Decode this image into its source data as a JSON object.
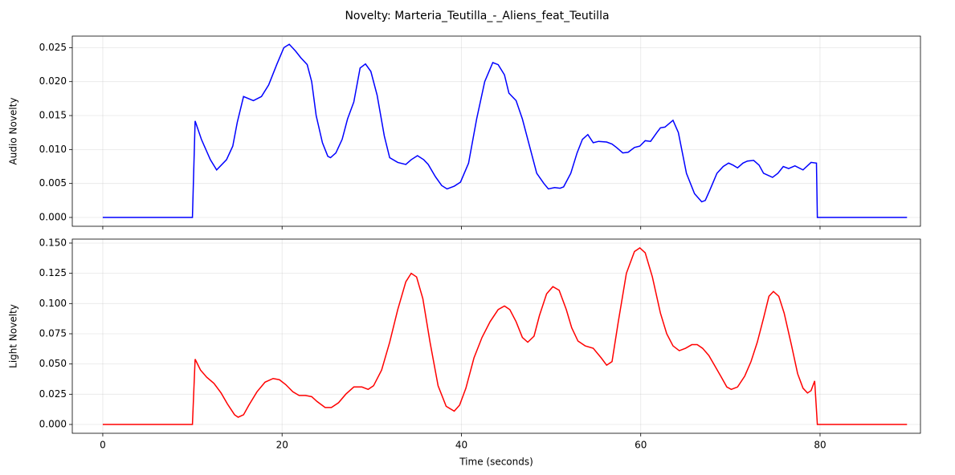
{
  "title": "Novelty: Marteria_Teutilla_-_Aliens_feat_Teutilla",
  "chart_data": [
    {
      "type": "line",
      "ylabel": "Audio Novelty",
      "color": "#0000ff",
      "grid": true,
      "xlim": [
        -3.4,
        91.2
      ],
      "ylim": [
        -0.0013,
        0.0267
      ],
      "yticks": [
        {
          "value": 0,
          "label": "0.000"
        },
        {
          "value": 0.005,
          "label": "0.005"
        },
        {
          "value": 0.01,
          "label": "0.010"
        },
        {
          "value": 0.015,
          "label": "0.015"
        },
        {
          "value": 0.02,
          "label": "0.020"
        },
        {
          "value": 0.025,
          "label": "0.025"
        }
      ],
      "x": [
        0,
        10.0,
        10.3,
        11.0,
        12.0,
        12.7,
        13.8,
        14.5,
        15.0,
        15.7,
        16.8,
        17.7,
        18.5,
        19.4,
        20.2,
        20.8,
        21.5,
        22.1,
        22.8,
        23.3,
        23.8,
        24.5,
        25.1,
        25.4,
        26.0,
        26.7,
        27.3,
        28.0,
        28.7,
        29.3,
        29.9,
        30.6,
        31.4,
        32.0,
        32.9,
        33.8,
        34.4,
        35.1,
        35.8,
        36.3,
        37.1,
        37.8,
        38.4,
        39.2,
        39.9,
        40.8,
        41.7,
        42.6,
        43.5,
        44.1,
        44.8,
        45.3,
        46.1,
        46.8,
        47.7,
        48.4,
        49.2,
        49.7,
        50.4,
        51.0,
        51.4,
        52.2,
        52.9,
        53.5,
        54.1,
        54.7,
        55.3,
        56.2,
        56.8,
        57.3,
        58.0,
        58.6,
        59.3,
        59.9,
        60.5,
        61.1,
        61.8,
        62.2,
        62.7,
        63.6,
        64.2,
        65.1,
        66.0,
        66.8,
        67.2,
        67.7,
        68.5,
        69.2,
        69.8,
        70.3,
        70.8,
        71.4,
        71.9,
        72.6,
        73.2,
        73.7,
        74.7,
        75.3,
        75.9,
        76.5,
        77.2,
        78.1,
        79.0,
        79.6,
        79.7,
        89.7
      ],
      "values": [
        0,
        0,
        0.0142,
        0.0115,
        0.0085,
        0.007,
        0.0085,
        0.0105,
        0.014,
        0.0178,
        0.0172,
        0.0178,
        0.0195,
        0.0225,
        0.025,
        0.0255,
        0.0245,
        0.0235,
        0.0225,
        0.02,
        0.015,
        0.011,
        0.009,
        0.0088,
        0.0095,
        0.0115,
        0.0145,
        0.017,
        0.022,
        0.0226,
        0.0215,
        0.018,
        0.012,
        0.0088,
        0.0081,
        0.0078,
        0.0085,
        0.0091,
        0.0085,
        0.0078,
        0.006,
        0.0047,
        0.0042,
        0.0046,
        0.0052,
        0.008,
        0.0145,
        0.02,
        0.0228,
        0.0225,
        0.021,
        0.0183,
        0.0172,
        0.0145,
        0.01,
        0.0065,
        0.005,
        0.0042,
        0.0044,
        0.0043,
        0.0045,
        0.0065,
        0.0095,
        0.0115,
        0.0122,
        0.011,
        0.0112,
        0.0111,
        0.0108,
        0.0103,
        0.0095,
        0.0096,
        0.0103,
        0.0105,
        0.0113,
        0.0112,
        0.0125,
        0.0132,
        0.0133,
        0.0143,
        0.0125,
        0.0065,
        0.0035,
        0.0023,
        0.0025,
        0.004,
        0.0065,
        0.0075,
        0.008,
        0.0077,
        0.0073,
        0.008,
        0.0083,
        0.0084,
        0.0077,
        0.0065,
        0.0059,
        0.0065,
        0.0075,
        0.0072,
        0.0076,
        0.007,
        0.0081,
        0.008,
        0,
        0
      ]
    },
    {
      "type": "line",
      "ylabel": "Light Novelty",
      "xlabel": "Time (seconds)",
      "color": "#ff0000",
      "grid": true,
      "xlim": [
        -3.4,
        91.2
      ],
      "ylim": [
        -0.0073,
        0.1533
      ],
      "xticks": [
        0,
        20,
        40,
        60,
        80
      ],
      "yticks": [
        {
          "value": 0,
          "label": "0.000"
        },
        {
          "value": 0.025,
          "label": "0.025"
        },
        {
          "value": 0.05,
          "label": "0.050"
        },
        {
          "value": 0.075,
          "label": "0.075"
        },
        {
          "value": 0.1,
          "label": "0.100"
        },
        {
          "value": 0.125,
          "label": "0.125"
        },
        {
          "value": 0.15,
          "label": "0.150"
        }
      ],
      "x": [
        0,
        10.0,
        10.3,
        10.9,
        11.6,
        12.4,
        13.2,
        13.9,
        14.7,
        15.1,
        15.7,
        16.3,
        17.2,
        18.1,
        19.0,
        19.7,
        20.4,
        21.2,
        21.9,
        22.6,
        23.3,
        23.9,
        24.8,
        25.5,
        26.3,
        27.1,
        28.0,
        28.9,
        29.6,
        30.2,
        31.1,
        32.0,
        32.9,
        33.8,
        34.4,
        35.0,
        35.7,
        36.5,
        37.4,
        38.3,
        39.2,
        39.8,
        40.5,
        41.4,
        42.3,
        43.2,
        44.1,
        44.8,
        45.4,
        46.1,
        46.8,
        47.4,
        48.1,
        48.7,
        49.5,
        50.2,
        50.9,
        51.7,
        52.3,
        53.0,
        53.8,
        54.7,
        55.6,
        56.2,
        56.8,
        57.5,
        58.4,
        59.3,
        59.9,
        60.5,
        61.3,
        62.2,
        62.9,
        63.6,
        64.3,
        65.0,
        65.7,
        66.3,
        66.9,
        67.6,
        68.3,
        69.0,
        69.6,
        70.1,
        70.8,
        71.6,
        72.3,
        73.0,
        73.7,
        74.3,
        74.8,
        75.4,
        76.0,
        76.8,
        77.5,
        78.1,
        78.6,
        79.0,
        79.4,
        79.7,
        89.7
      ],
      "values": [
        0,
        0,
        0.054,
        0.045,
        0.039,
        0.034,
        0.026,
        0.017,
        0.008,
        0.006,
        0.008,
        0.016,
        0.027,
        0.035,
        0.038,
        0.037,
        0.033,
        0.027,
        0.024,
        0.024,
        0.023,
        0.019,
        0.014,
        0.014,
        0.018,
        0.025,
        0.031,
        0.031,
        0.029,
        0.032,
        0.045,
        0.068,
        0.095,
        0.118,
        0.125,
        0.122,
        0.104,
        0.068,
        0.032,
        0.015,
        0.011,
        0.016,
        0.03,
        0.055,
        0.072,
        0.085,
        0.095,
        0.098,
        0.095,
        0.085,
        0.072,
        0.068,
        0.073,
        0.09,
        0.108,
        0.114,
        0.111,
        0.095,
        0.08,
        0.069,
        0.065,
        0.063,
        0.055,
        0.049,
        0.052,
        0.085,
        0.125,
        0.143,
        0.146,
        0.142,
        0.122,
        0.092,
        0.075,
        0.065,
        0.061,
        0.063,
        0.066,
        0.066,
        0.063,
        0.057,
        0.048,
        0.039,
        0.031,
        0.029,
        0.031,
        0.04,
        0.052,
        0.068,
        0.088,
        0.106,
        0.11,
        0.106,
        0.092,
        0.066,
        0.042,
        0.03,
        0.026,
        0.028,
        0.036,
        0,
        0
      ]
    }
  ]
}
